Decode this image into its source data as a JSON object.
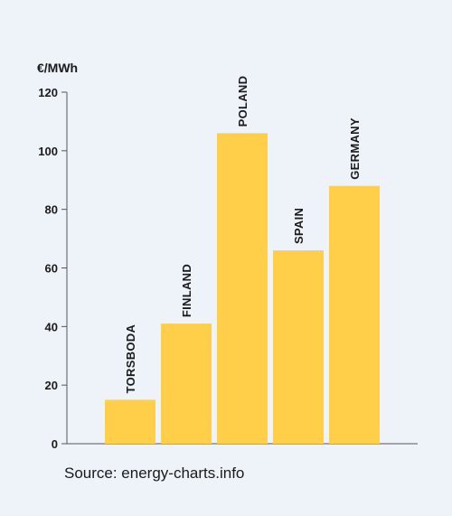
{
  "chart_data": {
    "type": "bar",
    "unit_label": "€/MWh",
    "categories": [
      "TORSBODA",
      "FINLAND",
      "POLAND",
      "SPAIN",
      "GERMANY"
    ],
    "values": [
      15,
      41,
      106,
      66,
      88
    ],
    "ylim": [
      0,
      120
    ],
    "yticks": [
      0,
      20,
      40,
      60,
      80,
      100,
      120
    ],
    "grid": false,
    "legend": "none",
    "bar_color": "#ffcf4a",
    "axis_color": "#555555",
    "source": "Source: energy-charts.info"
  }
}
